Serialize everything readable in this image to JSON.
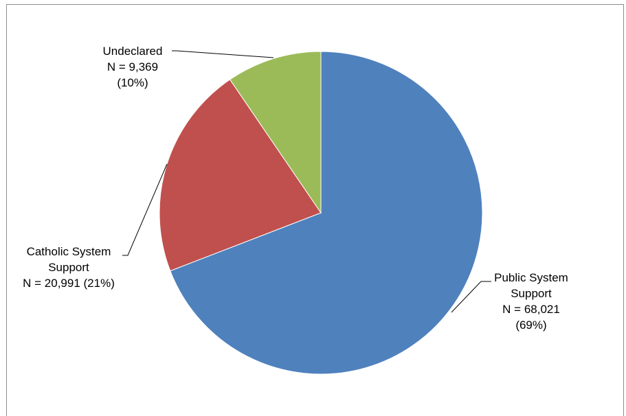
{
  "chart_data": {
    "type": "pie",
    "title": "",
    "legend": "none",
    "slices": [
      {
        "name": "Public System Support",
        "value": 68021,
        "percent": 69,
        "color": "#4f81bd",
        "label_lines": [
          "Public System",
          "Support",
          "N = 68,021",
          "(69%)"
        ]
      },
      {
        "name": "Catholic System Support",
        "value": 20991,
        "percent": 21,
        "color": "#c0504d",
        "label_lines": [
          "Catholic System",
          "Support",
          "N = 20,991 (21%)"
        ]
      },
      {
        "name": "Undeclared",
        "value": 9369,
        "percent": 10,
        "color": "#9bbb59",
        "label_lines": [
          "Undeclared",
          "N = 9,369",
          "(10%)"
        ]
      }
    ]
  }
}
